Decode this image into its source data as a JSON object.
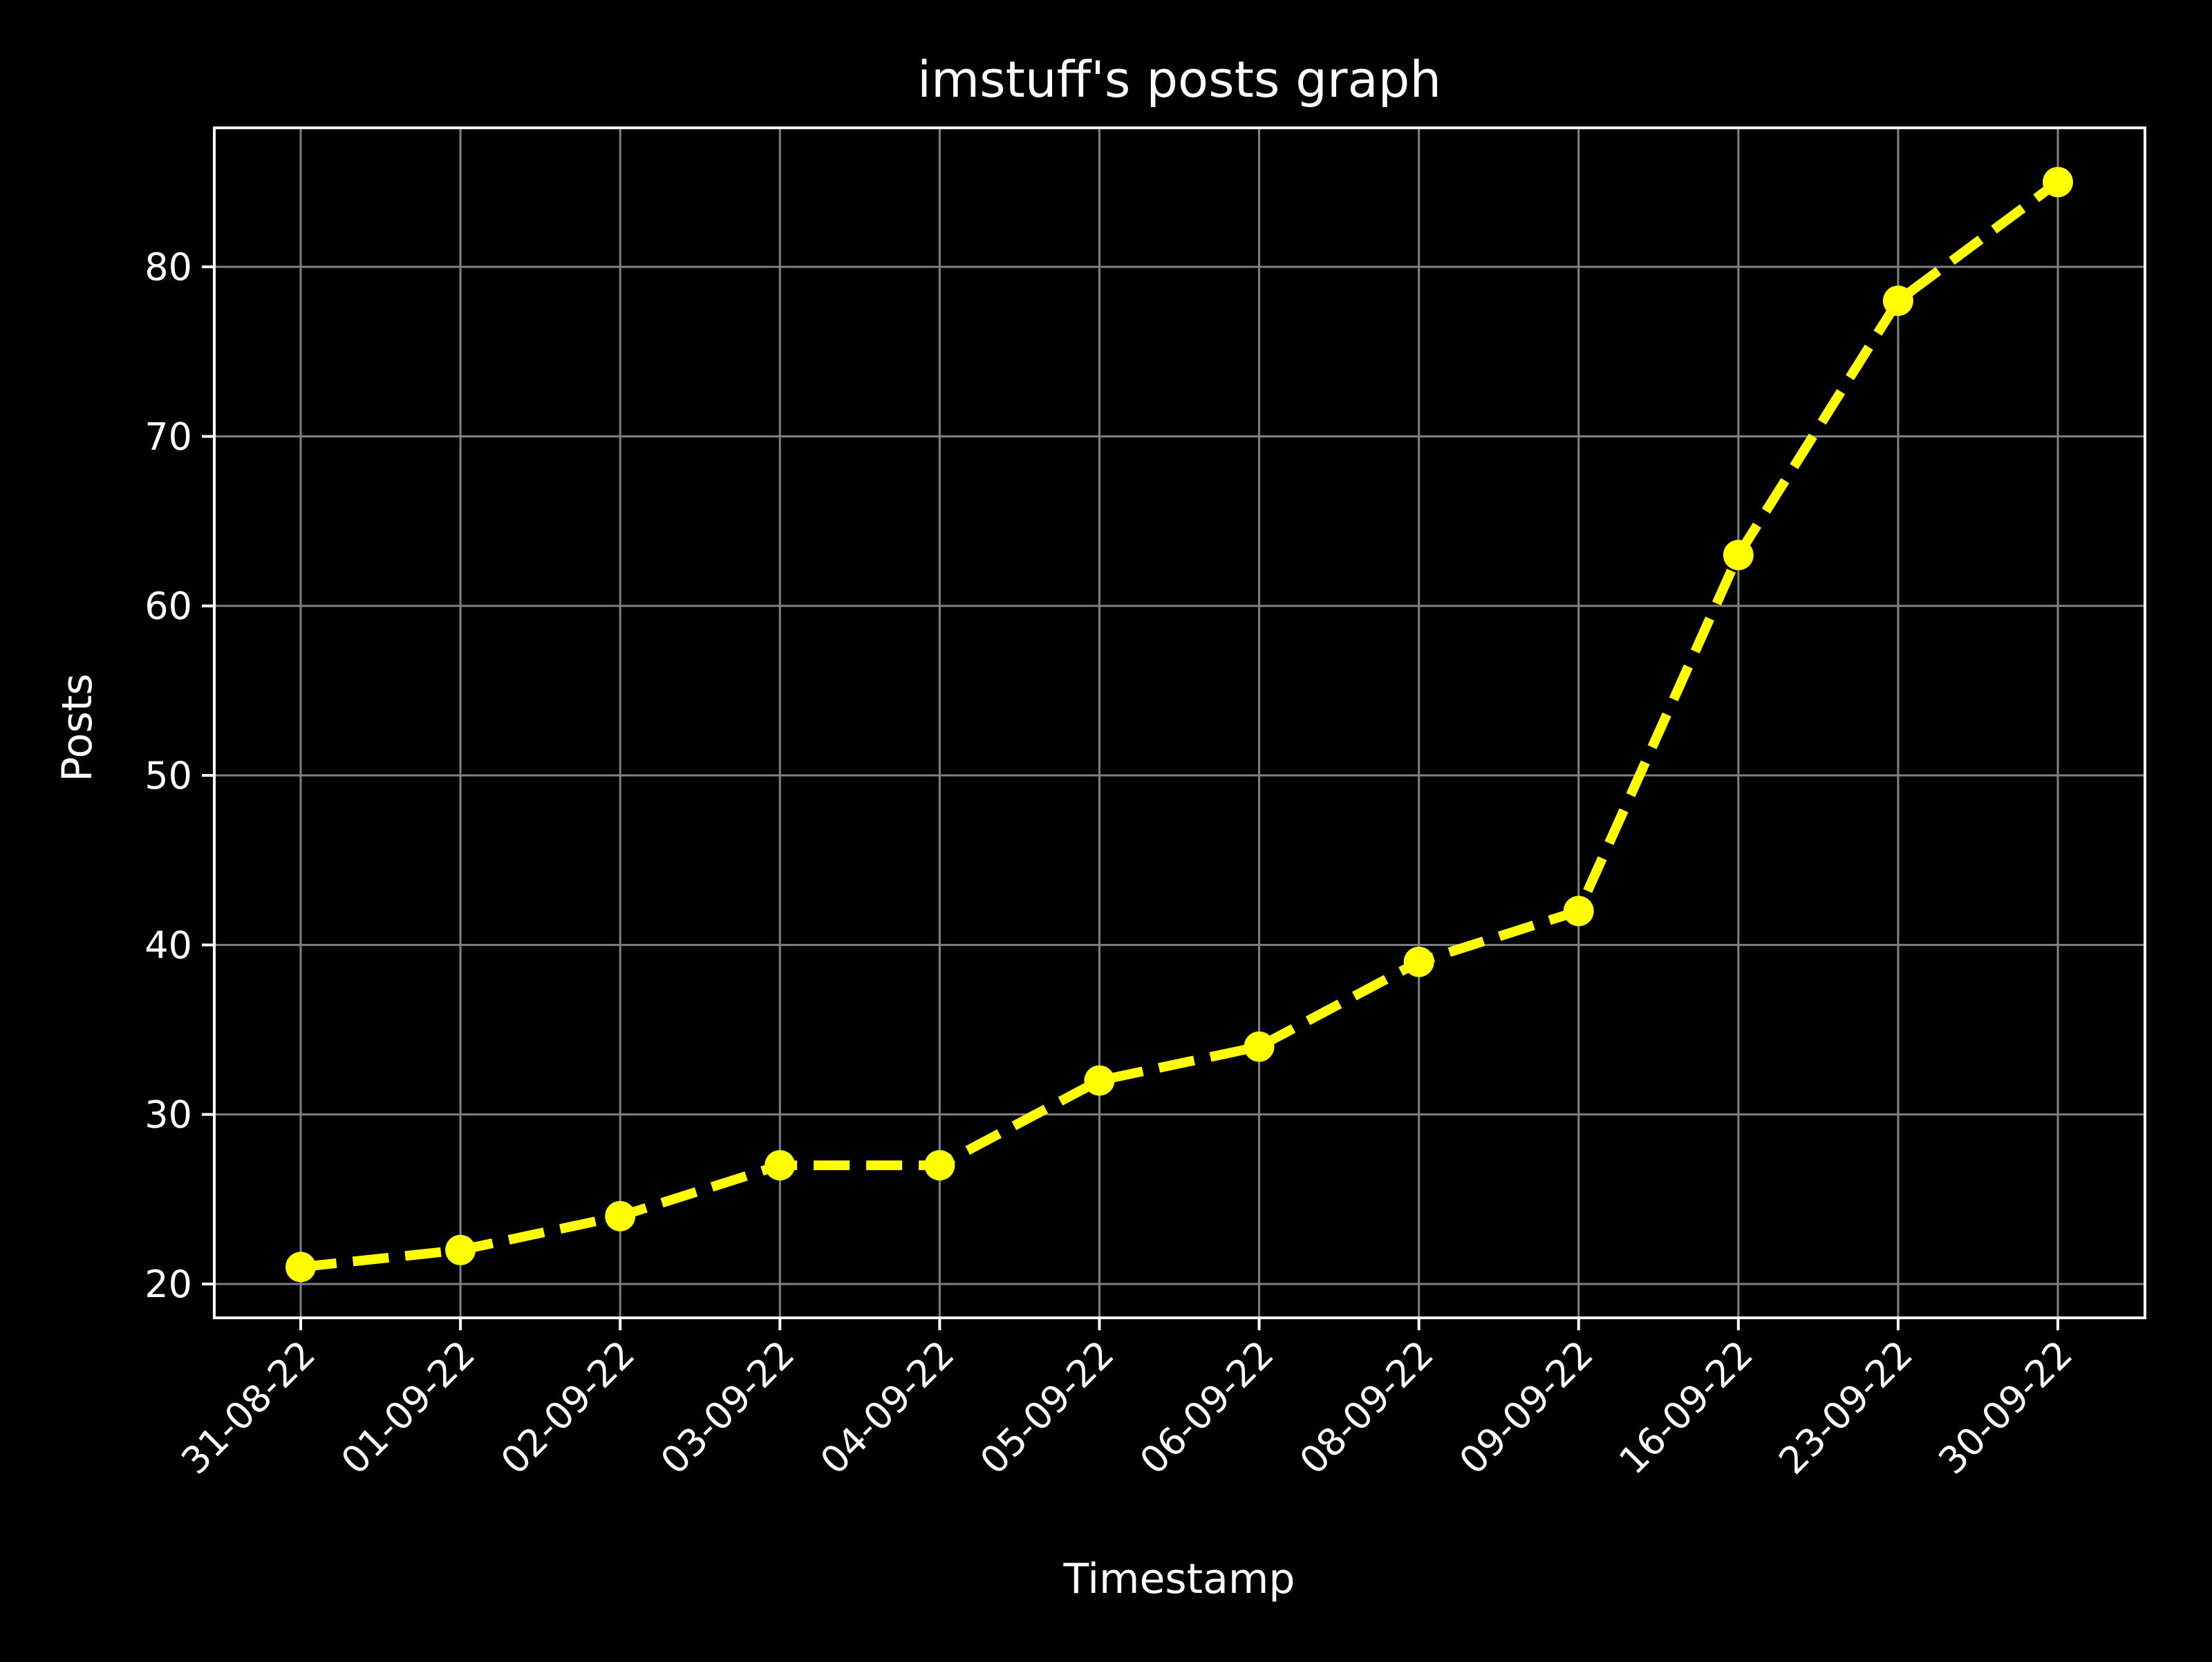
{
  "chart_data": {
    "type": "line",
    "title": "imstuff's posts graph",
    "xlabel": "Timestamp",
    "ylabel": "Posts",
    "categories": [
      "31-08-22",
      "01-09-22",
      "02-09-22",
      "03-09-22",
      "04-09-22",
      "05-09-22",
      "06-09-22",
      "08-09-22",
      "09-09-22",
      "16-09-22",
      "23-09-22",
      "30-09-22"
    ],
    "series": [
      {
        "name": "Posts",
        "values": [
          21,
          22,
          24,
          27,
          27,
          32,
          34,
          39,
          42,
          63,
          78,
          85
        ],
        "color": "#ffff00",
        "line_style": "dashed",
        "marker": "circle"
      }
    ],
    "ylim": [
      18,
      88.2
    ],
    "yticks": [
      20,
      30,
      40,
      50,
      60,
      70,
      80
    ],
    "grid": true,
    "colors": {
      "background": "#000000",
      "axes": "#ffffff",
      "grid": "#808080",
      "text": "#ffffff"
    }
  }
}
